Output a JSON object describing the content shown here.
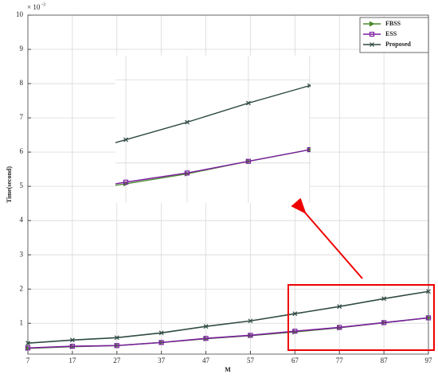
{
  "chart_data": {
    "type": "line",
    "x_label": "M",
    "y_label": "Time(second)",
    "y_scale_label": {
      "base": "× 10",
      "exponent": "-3"
    },
    "x": [
      7,
      17,
      27,
      37,
      47,
      57,
      67,
      77,
      87,
      97
    ],
    "xlim": [
      7,
      97
    ],
    "xticks": [
      7,
      17,
      27,
      37,
      47,
      57,
      67,
      77,
      87,
      97
    ],
    "ylim": [
      0.1,
      10
    ],
    "yticks": [
      1,
      2,
      3,
      4,
      5,
      6,
      7,
      8,
      9,
      10
    ],
    "grid": true,
    "legend": "top-right",
    "series": [
      {
        "name": "FBSS",
        "color": "#4b8a2c",
        "marker": "triangle",
        "values": [
          0.27,
          0.32,
          0.35,
          0.44,
          0.55,
          0.64,
          0.75,
          0.87,
          1.02,
          1.16
        ]
      },
      {
        "name": "ESS",
        "color": "#7a1fa0",
        "marker": "square",
        "values": [
          0.28,
          0.33,
          0.35,
          0.44,
          0.56,
          0.65,
          0.77,
          0.88,
          1.02,
          1.16
        ]
      },
      {
        "name": "Proposed",
        "color": "#2f4a44",
        "marker": "x",
        "values": [
          0.42,
          0.51,
          0.58,
          0.72,
          0.91,
          1.07,
          1.28,
          1.49,
          1.72,
          1.93
        ]
      }
    ]
  }
}
